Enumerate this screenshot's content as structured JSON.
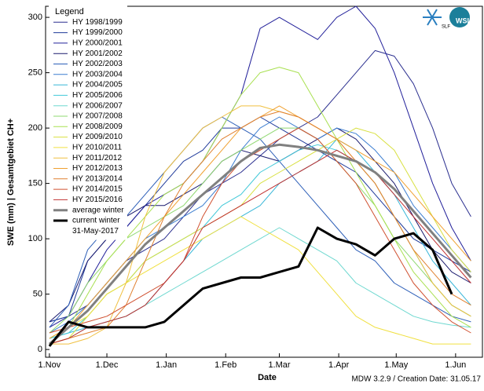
{
  "chart_data": {
    "type": "line",
    "y_label": "SWE (mm)  |  Gesamtgebiet CH+",
    "x_label": "Date",
    "footer": "MDW 3.2.9 / Creation Date: 31.05.17",
    "legend_title": "Legend",
    "current_date_label": "31-May-2017",
    "logos": [
      "SLF",
      "WSL"
    ],
    "legend": "upper left",
    "xlim": [
      -2,
      226
    ],
    "ylim": [
      -7,
      310
    ],
    "xticks": [
      {
        "value": 0,
        "label": "1.Nov"
      },
      {
        "value": 30,
        "label": "1.Dec"
      },
      {
        "value": 61,
        "label": "1.Jan"
      },
      {
        "value": 92,
        "label": "1.Feb"
      },
      {
        "value": 120,
        "label": "1.Mar"
      },
      {
        "value": 151,
        "label": "1.Apr"
      },
      {
        "value": 181,
        "label": "1.May"
      },
      {
        "value": 212,
        "label": "1.Jun"
      }
    ],
    "yticks": [
      0,
      50,
      100,
      150,
      200,
      250,
      300
    ],
    "x": [
      0,
      10,
      20,
      30,
      40,
      50,
      60,
      70,
      80,
      90,
      100,
      110,
      120,
      130,
      140,
      150,
      160,
      170,
      180,
      190,
      200,
      210,
      220
    ],
    "series": [
      {
        "name": "HY 1998/1999",
        "color": "#2b2f8f",
        "width": 1,
        "values": [
          25,
          30,
          40,
          60,
          80,
          90,
          100,
          120,
          140,
          150,
          160,
          175,
          190,
          200,
          210,
          230,
          250,
          270,
          265,
          240,
          200,
          150,
          120
        ]
      },
      {
        "name": "HY 1999/2000",
        "color": "#1f3a9a",
        "width": 1,
        "values": [
          25,
          30,
          80,
          100,
          110,
          130,
          150,
          170,
          180,
          200,
          200,
          210,
          200,
          190,
          180,
          170,
          160,
          140,
          120,
          100,
          90,
          80,
          70
        ]
      },
      {
        "name": "HY 2000/2001",
        "color": "#22209a",
        "width": 1,
        "values": [
          20,
          30,
          60,
          90,
          110,
          130,
          140,
          150,
          170,
          200,
          230,
          290,
          300,
          290,
          280,
          300,
          310,
          290,
          250,
          200,
          150,
          110,
          80
        ]
      },
      {
        "name": "HY 2001/2002",
        "color": "#1a1a6e",
        "width": 1,
        "values": [
          25,
          40,
          80,
          100,
          120,
          130,
          130,
          140,
          150,
          170,
          180,
          175,
          170,
          180,
          190,
          200,
          190,
          170,
          150,
          120,
          90,
          70,
          60
        ]
      },
      {
        "name": "HY 2002/2003",
        "color": "#2d5fb8",
        "width": 1,
        "values": [
          20,
          40,
          90,
          110,
          120,
          140,
          160,
          180,
          200,
          210,
          200,
          190,
          170,
          150,
          130,
          110,
          90,
          80,
          60,
          50,
          40,
          30,
          25
        ]
      },
      {
        "name": "HY 2003/2004",
        "color": "#3b7dd0",
        "width": 1,
        "values": [
          15,
          25,
          40,
          60,
          80,
          100,
          110,
          120,
          130,
          150,
          180,
          200,
          210,
          200,
          190,
          200,
          195,
          180,
          160,
          130,
          110,
          90,
          70
        ]
      },
      {
        "name": "HY 2004/2005",
        "color": "#38b6d8",
        "width": 1,
        "values": [
          10,
          15,
          20,
          25,
          30,
          40,
          60,
          80,
          100,
          110,
          120,
          130,
          150,
          160,
          170,
          190,
          180,
          160,
          140,
          110,
          80,
          60,
          40
        ]
      },
      {
        "name": "HY 2005/2006",
        "color": "#40c8d8",
        "width": 1,
        "values": [
          10,
          15,
          30,
          50,
          60,
          80,
          90,
          100,
          110,
          130,
          140,
          160,
          170,
          180,
          185,
          180,
          170,
          150,
          120,
          90,
          60,
          40,
          30
        ]
      },
      {
        "name": "HY 2006/2007",
        "color": "#6fd8d0",
        "width": 1,
        "values": [
          5,
          10,
          20,
          25,
          30,
          40,
          50,
          60,
          70,
          80,
          90,
          100,
          110,
          100,
          90,
          80,
          60,
          50,
          40,
          30,
          25,
          22,
          20
        ]
      },
      {
        "name": "HY 2007/2008",
        "color": "#8fd870",
        "width": 1,
        "values": [
          15,
          30,
          60,
          80,
          100,
          110,
          120,
          130,
          150,
          170,
          180,
          190,
          200,
          200,
          190,
          170,
          150,
          130,
          100,
          80,
          60,
          40,
          30
        ]
      },
      {
        "name": "HY 2008/2009",
        "color": "#a8e050",
        "width": 1,
        "values": [
          10,
          20,
          50,
          80,
          100,
          120,
          140,
          150,
          170,
          200,
          230,
          250,
          255,
          250,
          220,
          190,
          160,
          130,
          100,
          70,
          50,
          30,
          20
        ]
      },
      {
        "name": "HY 2009/2010",
        "color": "#d8e040",
        "width": 1,
        "values": [
          5,
          10,
          30,
          50,
          60,
          80,
          90,
          100,
          110,
          120,
          130,
          150,
          160,
          170,
          180,
          190,
          200,
          195,
          180,
          150,
          120,
          90,
          70
        ]
      },
      {
        "name": "HY 2010/2011",
        "color": "#f0e040",
        "width": 1,
        "values": [
          10,
          20,
          30,
          50,
          60,
          70,
          80,
          90,
          100,
          110,
          120,
          110,
          100,
          90,
          70,
          50,
          30,
          20,
          15,
          10,
          5,
          5,
          5
        ]
      },
      {
        "name": "HY 2011/2012",
        "color": "#f0c040",
        "width": 1,
        "values": [
          5,
          5,
          10,
          20,
          60,
          120,
          160,
          180,
          200,
          210,
          220,
          220,
          215,
          210,
          200,
          190,
          170,
          150,
          120,
          90,
          60,
          40,
          30
        ]
      },
      {
        "name": "HY 2012/2013",
        "color": "#f0a030",
        "width": 1,
        "values": [
          10,
          20,
          40,
          60,
          80,
          100,
          120,
          140,
          160,
          180,
          200,
          210,
          220,
          210,
          200,
          190,
          180,
          170,
          160,
          140,
          120,
          100,
          80
        ]
      },
      {
        "name": "HY 2013/2014",
        "color": "#e08030",
        "width": 1,
        "values": [
          5,
          10,
          15,
          20,
          40,
          80,
          120,
          150,
          170,
          190,
          200,
          210,
          215,
          210,
          200,
          190,
          170,
          150,
          120,
          90,
          70,
          50,
          40
        ]
      },
      {
        "name": "HY 2014/2015",
        "color": "#d05030",
        "width": 1,
        "values": [
          15,
          20,
          25,
          30,
          40,
          50,
          60,
          80,
          120,
          150,
          170,
          180,
          190,
          200,
          190,
          170,
          150,
          120,
          90,
          60,
          40,
          25,
          15
        ]
      },
      {
        "name": "HY 2015/2016",
        "color": "#c03030",
        "width": 1,
        "values": [
          5,
          10,
          20,
          25,
          30,
          40,
          60,
          80,
          110,
          120,
          130,
          140,
          150,
          160,
          170,
          180,
          170,
          160,
          140,
          120,
          100,
          80,
          60
        ]
      },
      {
        "name": "average winter",
        "color": "#808080",
        "width": 3,
        "values": [
          5,
          20,
          35,
          55,
          75,
          95,
          110,
          125,
          140,
          155,
          170,
          182,
          185,
          183,
          180,
          175,
          170,
          160,
          145,
          125,
          105,
          85,
          65
        ]
      },
      {
        "name": "current winter",
        "color": "#000000",
        "width": 3,
        "values": [
          3,
          25,
          20,
          20,
          20,
          20,
          25,
          40,
          55,
          60,
          65,
          65,
          70,
          75,
          110,
          100,
          95,
          85,
          100,
          105,
          90,
          50,
          null
        ]
      }
    ]
  }
}
